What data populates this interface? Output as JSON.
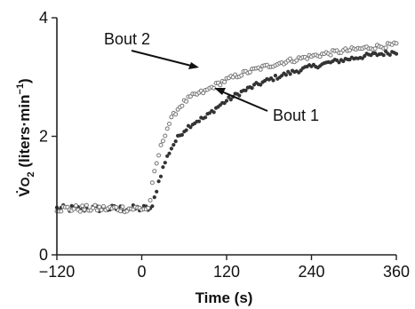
{
  "chart_data": {
    "type": "scatter",
    "title": "",
    "xlabel": "Time (s)",
    "ylabel": {
      "symbol": "V̇",
      "subscript_base": "O",
      "subscript": "2",
      "units_open": " (liters·min",
      "exponent": "−1",
      "units_close": ")"
    },
    "xlim": [
      -120,
      360
    ],
    "ylim": [
      0,
      4
    ],
    "x_ticks": [
      "−120",
      "0",
      "120",
      "240",
      "360"
    ],
    "x_tick_values": [
      -120,
      0,
      120,
      240,
      360
    ],
    "y_ticks": [
      "0",
      "2",
      "4"
    ],
    "y_tick_values": [
      0,
      2,
      4
    ],
    "grid": false,
    "series": [
      {
        "name": "Bout 1",
        "marker": "filled-circle",
        "color": "#333333",
        "curve": {
          "baseline": 0.78,
          "onset_s": 0,
          "fast_amplitude": 1.65,
          "fast_tau_s": 28,
          "delay_s": 15,
          "slow_amplitude": 1.22,
          "slow_tau_s": 160,
          "slow_start_s": 90
        }
      },
      {
        "name": "Bout 2",
        "marker": "open-circle",
        "color": "#777777",
        "curve": {
          "baseline": 0.78,
          "onset_s": 0,
          "fast_amplitude": 2.05,
          "fast_tau_s": 24,
          "delay_s": 10,
          "slow_amplitude": 0.92,
          "slow_tau_s": 180,
          "slow_start_s": 90
        }
      }
    ],
    "annotations": [
      {
        "text": "Bout 2",
        "points_to": {
          "series": "Bout 2",
          "x": 75,
          "y": 3.1
        }
      },
      {
        "text": "Bout 1",
        "points_to": {
          "series": "Bout 1",
          "x": 115,
          "y": 2.95
        }
      }
    ]
  },
  "colors": {
    "bout1_marker": "#333333",
    "bout2_marker": "#777777",
    "axis": "#222222"
  }
}
